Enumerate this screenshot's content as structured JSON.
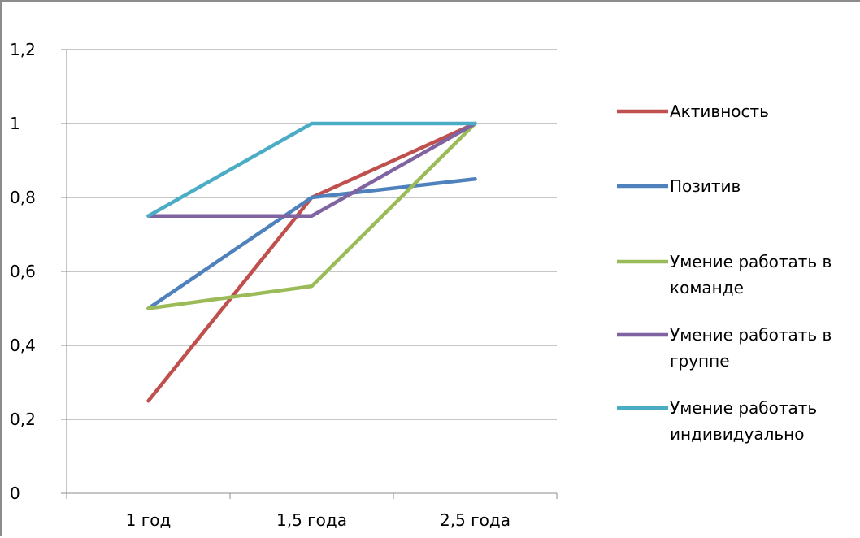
{
  "chart_data": {
    "type": "line",
    "title": "",
    "xlabel": "",
    "ylabel": "",
    "categories": [
      "1 год",
      "1,5 года",
      "2,5 года"
    ],
    "ylim": [
      0,
      1.2
    ],
    "yticks": [
      0,
      0.2,
      0.4,
      0.6,
      0.8,
      1,
      1.2
    ],
    "ytick_labels": [
      "0",
      "0,2",
      "0,4",
      "0,6",
      "0,8",
      "1",
      "1,2"
    ],
    "grid": "horizontal",
    "legend_position": "right",
    "series": [
      {
        "name": "Активность",
        "legend_lines": [
          "Активность"
        ],
        "color": "#c0504d",
        "values": [
          0.25,
          0.8,
          1.0
        ]
      },
      {
        "name": "Позитив",
        "legend_lines": [
          "Позитив"
        ],
        "color": "#4f81bd",
        "values": [
          0.5,
          0.8,
          0.85
        ]
      },
      {
        "name": "Умение работать в команде",
        "legend_lines": [
          "Умение работать в",
          "команде"
        ],
        "color": "#9bbb59",
        "values": [
          0.5,
          0.56,
          1.0
        ]
      },
      {
        "name": "Умение работать в группе",
        "legend_lines": [
          "Умение работать в",
          "группе"
        ],
        "color": "#8064a2",
        "values": [
          0.75,
          0.75,
          1.0
        ]
      },
      {
        "name": "Умение работать индивидуально",
        "legend_lines": [
          "Умение работать",
          "индивидуально"
        ],
        "color": "#4bacc6",
        "values": [
          0.75,
          1.0,
          1.0
        ]
      }
    ]
  }
}
